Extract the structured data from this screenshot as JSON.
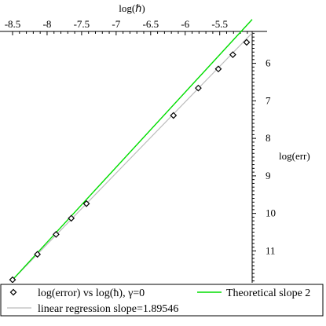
{
  "chart_data": {
    "type": "scatter",
    "xlabel": "log(ℏ)",
    "ylabel": "log(err)",
    "xlim": [
      -8.5,
      -5.03
    ],
    "ylim": [
      -11.85,
      -5.15
    ],
    "x_ticks": [
      -8.5,
      -8,
      -7.5,
      -7,
      -6.5,
      -6,
      -5.5
    ],
    "x_tick_labels": [
      "-8.5",
      "-8",
      "-7.5",
      "-7",
      "-6.5",
      "-6",
      "-5.5"
    ],
    "y_ticks": [
      -6,
      -7,
      -8,
      -9,
      -10,
      -11
    ],
    "y_tick_labels": [
      "6",
      "7",
      "8",
      "9",
      "10",
      "11"
    ],
    "series": [
      {
        "name": "log(error) vs log(ħ), γ=0",
        "kind": "points",
        "color": "#000000",
        "x": [
          -8.5,
          -8.14,
          -7.87,
          -7.65,
          -7.43,
          -6.17,
          -5.81,
          -5.52,
          -5.31,
          -5.11
        ],
        "y": [
          -11.77,
          -11.09,
          -10.56,
          -10.13,
          -9.74,
          -7.39,
          -6.66,
          -6.15,
          -5.77,
          -5.44
        ]
      },
      {
        "name": "Theoretical slope 2",
        "kind": "line",
        "color": "#00dd00",
        "x": [
          -8.5,
          -5.03
        ],
        "y": [
          -11.77,
          -4.83
        ]
      },
      {
        "name": "linear regression slope=1.89546",
        "kind": "line",
        "color": "#bbbbbb",
        "x": [
          -8.5,
          -5.03
        ],
        "y": [
          -11.77,
          -5.19
        ]
      }
    ],
    "legend": {
      "placement": "bottom",
      "entries": [
        "log(error) vs log(ħ), γ=0",
        "Theoretical slope 2",
        "linear regression slope=1.89546"
      ]
    }
  }
}
